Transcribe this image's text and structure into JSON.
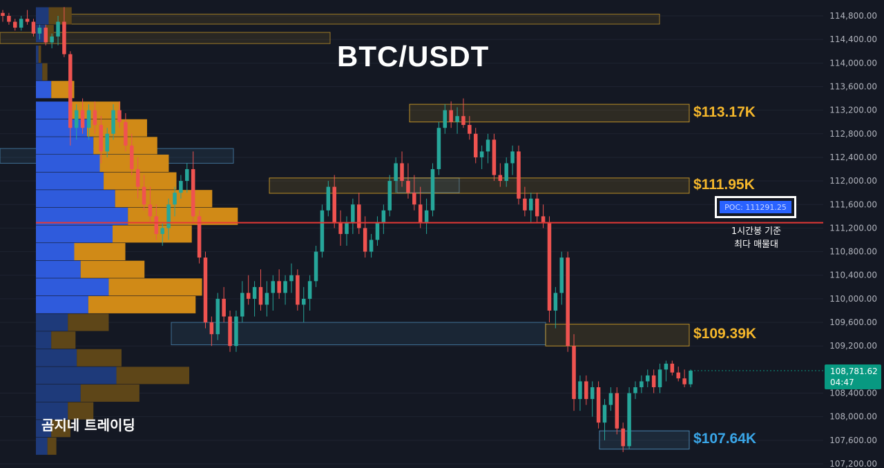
{
  "chart_data": {
    "type": "candlestick",
    "title": "BTC/USDT",
    "watermark": "곰지네 트레이딩",
    "y_axis": {
      "range": [
        107100,
        115000
      ],
      "ticks": [
        "114,800.00",
        "114,400.00",
        "114,000.00",
        "113,600.00",
        "113,200.00",
        "112,800.00",
        "112,400.00",
        "112,000.00",
        "111,600.00",
        "111,200.00",
        "110,800.00",
        "110,400.00",
        "110,000.00",
        "109,600.00",
        "109,200.00",
        "108,400.00",
        "108,000.00",
        "107,600.00",
        "107,200.00"
      ]
    },
    "current_price": {
      "price": "108,781.62",
      "countdown": "04:47",
      "value": 108781.62
    },
    "poc": {
      "label": "POC: 111291.25",
      "value": 111291.25,
      "caption_line1": "1시간봉 기준",
      "caption_line2": "최다 매물대",
      "color": "#e53935"
    },
    "zones": [
      {
        "label": "$113.17K",
        "top": 113300,
        "bottom": 113000,
        "color": "#f0b429",
        "label_color": "#f5b72b"
      },
      {
        "label": "$111.95K",
        "top": 112050,
        "bottom": 111790,
        "color": "#f0b429",
        "label_color": "#f5b72b"
      },
      {
        "label": "$109.39K",
        "top": 109570,
        "bottom": 109200,
        "color": "#f0b429",
        "label_color": "#f5b72b"
      },
      {
        "label": "$107.64K",
        "top": 107760,
        "bottom": 107450,
        "color": "#5aa4d8",
        "label_color": "#3aa6e8"
      }
    ],
    "volume_profile": {
      "bins": [
        {
          "price": 114800,
          "buy": 10,
          "sell": 18
        },
        {
          "price": 114500,
          "buy": 8,
          "sell": 6
        },
        {
          "price": 114150,
          "buy": 2,
          "sell": 2
        },
        {
          "price": 113850,
          "buy": 5,
          "sell": 4
        },
        {
          "price": 113550,
          "buy": 12,
          "sell": 18
        },
        {
          "price": 113200,
          "buy": 28,
          "sell": 38
        },
        {
          "price": 112900,
          "buy": 40,
          "sell": 47
        },
        {
          "price": 112600,
          "buy": 45,
          "sell": 50
        },
        {
          "price": 112300,
          "buy": 50,
          "sell": 54
        },
        {
          "price": 112000,
          "buy": 53,
          "sell": 57
        },
        {
          "price": 111700,
          "buy": 62,
          "sell": 76
        },
        {
          "price": 111400,
          "buy": 72,
          "sell": 86
        },
        {
          "price": 111100,
          "buy": 60,
          "sell": 62
        },
        {
          "price": 110800,
          "buy": 30,
          "sell": 40
        },
        {
          "price": 110500,
          "buy": 35,
          "sell": 50
        },
        {
          "price": 110200,
          "buy": 57,
          "sell": 73
        },
        {
          "price": 109900,
          "buy": 41,
          "sell": 84
        },
        {
          "price": 109600,
          "buy": 25,
          "sell": 32
        },
        {
          "price": 109300,
          "buy": 12,
          "sell": 19
        },
        {
          "price": 109000,
          "buy": 32,
          "sell": 35
        },
        {
          "price": 108700,
          "buy": 63,
          "sell": 57
        },
        {
          "price": 108400,
          "buy": 35,
          "sell": 46
        },
        {
          "price": 108100,
          "buy": 25,
          "sell": 20
        },
        {
          "price": 107800,
          "buy": 12,
          "sell": 15
        },
        {
          "price": 107500,
          "buy": 9,
          "sell": 7
        }
      ]
    },
    "candles": [
      [
        114850,
        114900,
        114700,
        114800
      ],
      [
        114800,
        114850,
        114650,
        114700
      ],
      [
        114700,
        114750,
        114550,
        114600
      ],
      [
        114600,
        114800,
        114550,
        114750
      ],
      [
        114750,
        114900,
        114650,
        114700
      ],
      [
        114700,
        114750,
        114450,
        114500
      ],
      [
        114500,
        114650,
        114400,
        114600
      ],
      [
        114600,
        114650,
        114300,
        114350
      ],
      [
        114350,
        114500,
        114250,
        114450
      ],
      [
        114450,
        114800,
        114300,
        114700
      ],
      [
        114700,
        114950,
        114100,
        114150
      ],
      [
        114150,
        114200,
        112600,
        112900
      ],
      [
        112900,
        113300,
        112700,
        113200
      ],
      [
        113200,
        113400,
        112800,
        112900
      ],
      [
        112900,
        113300,
        112700,
        113200
      ],
      [
        113200,
        113350,
        112800,
        112950
      ],
      [
        112950,
        113100,
        112300,
        112500
      ],
      [
        112500,
        112900,
        112400,
        112800
      ],
      [
        112800,
        113300,
        112700,
        113200
      ],
      [
        113200,
        113350,
        112900,
        113000
      ],
      [
        113000,
        113150,
        112500,
        112600
      ],
      [
        112600,
        112800,
        112100,
        112200
      ],
      [
        112200,
        112400,
        111700,
        111900
      ],
      [
        111900,
        112100,
        111500,
        111600
      ],
      [
        111600,
        111900,
        111300,
        111400
      ],
      [
        111400,
        111600,
        111000,
        111100
      ],
      [
        111100,
        111300,
        110900,
        111200
      ],
      [
        111200,
        111700,
        111000,
        111600
      ],
      [
        111600,
        111900,
        111400,
        111800
      ],
      [
        111800,
        112100,
        111700,
        112000
      ],
      [
        112000,
        112300,
        111800,
        112200
      ],
      [
        112200,
        112500,
        111300,
        111400
      ],
      [
        111400,
        111500,
        110600,
        110700
      ],
      [
        110700,
        110800,
        109500,
        109600
      ],
      [
        109600,
        109700,
        109200,
        109400
      ],
      [
        109400,
        110100,
        109300,
        110000
      ],
      [
        110000,
        110200,
        109600,
        109700
      ],
      [
        109700,
        109800,
        109100,
        109200
      ],
      [
        109200,
        109800,
        109100,
        109700
      ],
      [
        109700,
        110300,
        109600,
        110100
      ],
      [
        110100,
        110400,
        109900,
        110000
      ],
      [
        110000,
        110300,
        109700,
        110200
      ],
      [
        110200,
        110500,
        109800,
        109900
      ],
      [
        109900,
        110300,
        109700,
        110100
      ],
      [
        110100,
        110400,
        109800,
        110300
      ],
      [
        110300,
        110500,
        110000,
        110100
      ],
      [
        110100,
        110400,
        109900,
        110300
      ],
      [
        110300,
        110600,
        110100,
        110400
      ],
      [
        110400,
        110500,
        109800,
        109900
      ],
      [
        109900,
        110200,
        109600,
        110000
      ],
      [
        110000,
        110400,
        109800,
        110300
      ],
      [
        110300,
        110900,
        110200,
        110800
      ],
      [
        110800,
        111600,
        110700,
        111500
      ],
      [
        111500,
        112000,
        111400,
        111900
      ],
      [
        111900,
        112100,
        111200,
        111300
      ],
      [
        111300,
        111500,
        110900,
        111100
      ],
      [
        111100,
        111400,
        110900,
        111300
      ],
      [
        111300,
        111700,
        111100,
        111600
      ],
      [
        111600,
        111800,
        111100,
        111200
      ],
      [
        111200,
        111400,
        110700,
        110800
      ],
      [
        110800,
        111100,
        110700,
        111000
      ],
      [
        111000,
        111400,
        110900,
        111300
      ],
      [
        111300,
        111600,
        111100,
        111500
      ],
      [
        111500,
        112100,
        111400,
        112000
      ],
      [
        112000,
        112400,
        111800,
        112300
      ],
      [
        112300,
        112500,
        111900,
        112000
      ],
      [
        112000,
        112300,
        111700,
        111800
      ],
      [
        111800,
        112100,
        111500,
        111600
      ],
      [
        111600,
        111900,
        111200,
        111300
      ],
      [
        111300,
        111700,
        111100,
        111500
      ],
      [
        111500,
        112300,
        111400,
        112200
      ],
      [
        112200,
        113000,
        112100,
        112900
      ],
      [
        112900,
        113300,
        112800,
        113200
      ],
      [
        113200,
        113350,
        112900,
        113000
      ],
      [
        113000,
        113250,
        112800,
        113100
      ],
      [
        113100,
        113400,
        112900,
        112950
      ],
      [
        112950,
        113100,
        112700,
        112800
      ],
      [
        112800,
        112900,
        112300,
        112400
      ],
      [
        112400,
        112600,
        112200,
        112500
      ],
      [
        112500,
        112800,
        112300,
        112700
      ],
      [
        112700,
        112800,
        112000,
        112100
      ],
      [
        112100,
        112300,
        111900,
        112000
      ],
      [
        112000,
        112400,
        111900,
        112300
      ],
      [
        112300,
        112600,
        112100,
        112500
      ],
      [
        112500,
        112600,
        111600,
        111700
      ],
      [
        111700,
        111900,
        111400,
        111500
      ],
      [
        111500,
        111800,
        111300,
        111700
      ],
      [
        111700,
        111800,
        111300,
        111400
      ],
      [
        111400,
        111600,
        111200,
        111300
      ],
      [
        111300,
        111400,
        109600,
        109800
      ],
      [
        109800,
        110200,
        109500,
        110100
      ],
      [
        110100,
        110800,
        109900,
        110700
      ],
      [
        110700,
        110800,
        109100,
        109200
      ],
      [
        109200,
        109400,
        108100,
        108300
      ],
      [
        108300,
        108700,
        108100,
        108600
      ],
      [
        108600,
        108700,
        108200,
        108300
      ],
      [
        108300,
        108600,
        108000,
        108500
      ],
      [
        108500,
        108600,
        107800,
        107900
      ],
      [
        107900,
        108300,
        107600,
        108200
      ],
      [
        108200,
        108500,
        108100,
        108400
      ],
      [
        108400,
        108500,
        107700,
        107800
      ],
      [
        107800,
        107900,
        107400,
        107500
      ],
      [
        107500,
        108500,
        107450,
        108400
      ],
      [
        108400,
        108600,
        108300,
        108500
      ],
      [
        108500,
        108700,
        108400,
        108600
      ],
      [
        108600,
        108800,
        108500,
        108700
      ],
      [
        108700,
        108800,
        108400,
        108500
      ],
      [
        108500,
        108900,
        108400,
        108800
      ],
      [
        108800,
        108950,
        108600,
        108900
      ],
      [
        108900,
        108950,
        108700,
        108750
      ],
      [
        108750,
        108850,
        108600,
        108650
      ],
      [
        108650,
        108800,
        108500,
        108550
      ],
      [
        108550,
        108800,
        108500,
        108781
      ]
    ]
  }
}
